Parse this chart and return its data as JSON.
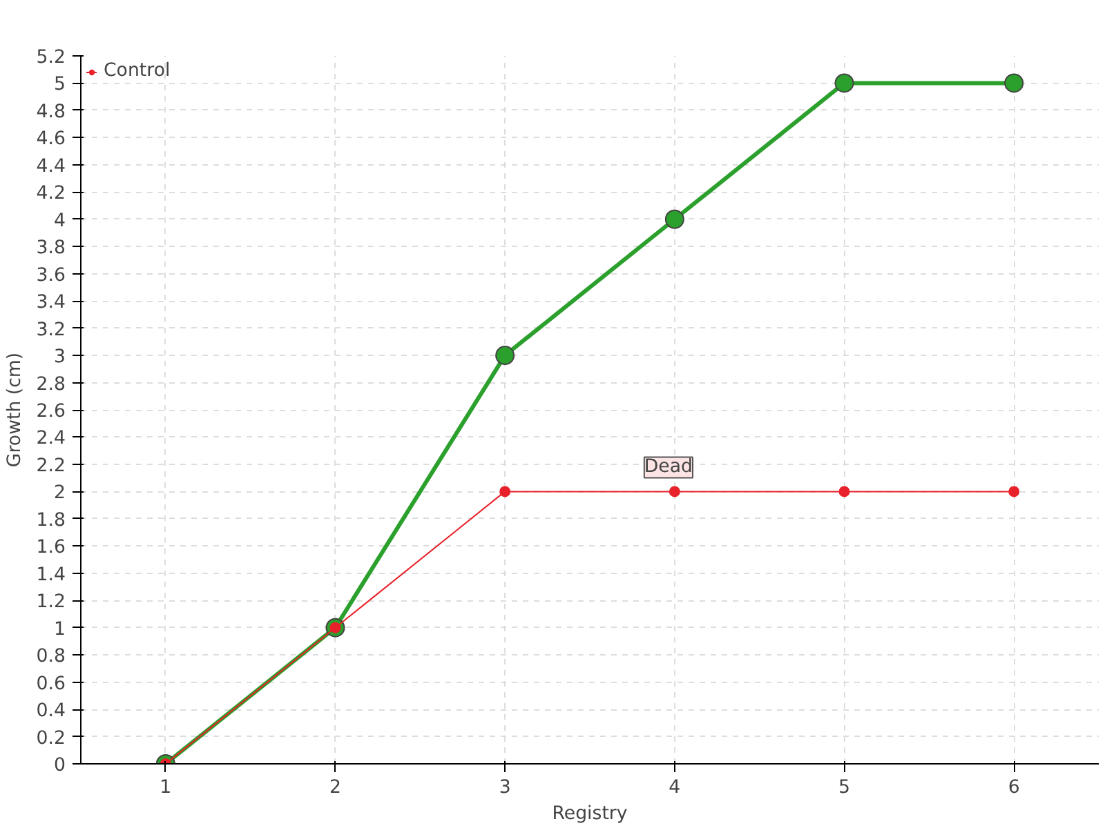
{
  "chart_data": {
    "type": "line",
    "xlabel": "Registry",
    "ylabel": "Growth (cm)",
    "x": [
      1,
      2,
      3,
      4,
      5,
      6
    ],
    "series": [
      {
        "color": "#2ca02c",
        "values": [
          0,
          1,
          3,
          4,
          5,
          5
        ]
      },
      {
        "name": "Control",
        "color": "#e8212a",
        "values": [
          0,
          1,
          2,
          2,
          2,
          2
        ]
      }
    ],
    "xlim": [
      0.5,
      6.5
    ],
    "xticks": [
      1,
      2,
      3,
      4,
      5,
      6
    ],
    "ylim": [
      0,
      5.2
    ],
    "yticks": [
      0,
      0.2,
      0.4,
      0.6,
      0.8,
      1,
      1.2,
      1.4,
      1.6,
      1.8,
      2,
      2.2,
      2.4,
      2.6,
      2.8,
      3,
      3.2,
      3.4,
      3.6,
      3.8,
      4,
      4.2,
      4.4,
      4.6,
      4.8,
      5,
      5.2
    ],
    "annotations": [
      {
        "text": "Dead",
        "x": 4,
        "y": 2
      }
    ],
    "grid": true,
    "legend": "top left",
    "marker": "circle",
    "line_style": "solid"
  }
}
